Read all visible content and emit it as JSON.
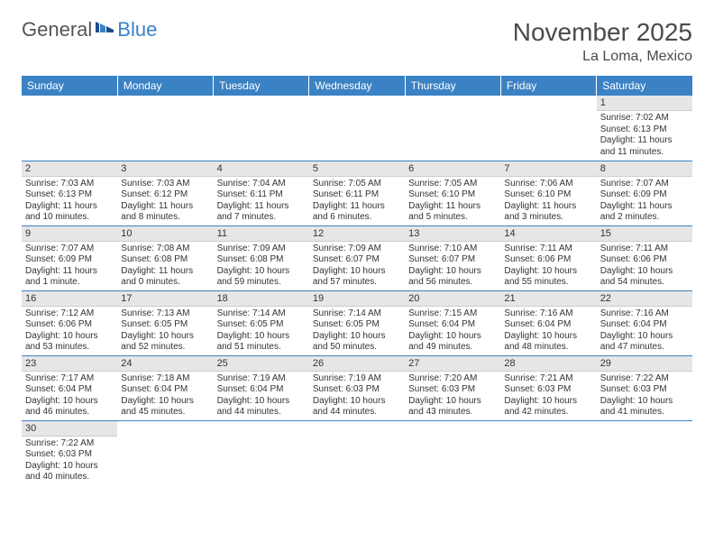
{
  "logo": {
    "general": "General",
    "blue": "Blue"
  },
  "title": "November 2025",
  "location": "La Loma, Mexico",
  "colors": {
    "header_bg": "#3b82c4",
    "header_text": "#ffffff",
    "daynum_bg": "#e6e6e6",
    "border": "#3b82c4",
    "text": "#333333"
  },
  "weekdays": [
    "Sunday",
    "Monday",
    "Tuesday",
    "Wednesday",
    "Thursday",
    "Friday",
    "Saturday"
  ],
  "grid": [
    [
      null,
      null,
      null,
      null,
      null,
      null,
      {
        "n": "1",
        "sr": "7:02 AM",
        "ss": "6:13 PM",
        "dl": "11 hours and 11 minutes."
      }
    ],
    [
      {
        "n": "2",
        "sr": "7:03 AM",
        "ss": "6:13 PM",
        "dl": "11 hours and 10 minutes."
      },
      {
        "n": "3",
        "sr": "7:03 AM",
        "ss": "6:12 PM",
        "dl": "11 hours and 8 minutes."
      },
      {
        "n": "4",
        "sr": "7:04 AM",
        "ss": "6:11 PM",
        "dl": "11 hours and 7 minutes."
      },
      {
        "n": "5",
        "sr": "7:05 AM",
        "ss": "6:11 PM",
        "dl": "11 hours and 6 minutes."
      },
      {
        "n": "6",
        "sr": "7:05 AM",
        "ss": "6:10 PM",
        "dl": "11 hours and 5 minutes."
      },
      {
        "n": "7",
        "sr": "7:06 AM",
        "ss": "6:10 PM",
        "dl": "11 hours and 3 minutes."
      },
      {
        "n": "8",
        "sr": "7:07 AM",
        "ss": "6:09 PM",
        "dl": "11 hours and 2 minutes."
      }
    ],
    [
      {
        "n": "9",
        "sr": "7:07 AM",
        "ss": "6:09 PM",
        "dl": "11 hours and 1 minute."
      },
      {
        "n": "10",
        "sr": "7:08 AM",
        "ss": "6:08 PM",
        "dl": "11 hours and 0 minutes."
      },
      {
        "n": "11",
        "sr": "7:09 AM",
        "ss": "6:08 PM",
        "dl": "10 hours and 59 minutes."
      },
      {
        "n": "12",
        "sr": "7:09 AM",
        "ss": "6:07 PM",
        "dl": "10 hours and 57 minutes."
      },
      {
        "n": "13",
        "sr": "7:10 AM",
        "ss": "6:07 PM",
        "dl": "10 hours and 56 minutes."
      },
      {
        "n": "14",
        "sr": "7:11 AM",
        "ss": "6:06 PM",
        "dl": "10 hours and 55 minutes."
      },
      {
        "n": "15",
        "sr": "7:11 AM",
        "ss": "6:06 PM",
        "dl": "10 hours and 54 minutes."
      }
    ],
    [
      {
        "n": "16",
        "sr": "7:12 AM",
        "ss": "6:06 PM",
        "dl": "10 hours and 53 minutes."
      },
      {
        "n": "17",
        "sr": "7:13 AM",
        "ss": "6:05 PM",
        "dl": "10 hours and 52 minutes."
      },
      {
        "n": "18",
        "sr": "7:14 AM",
        "ss": "6:05 PM",
        "dl": "10 hours and 51 minutes."
      },
      {
        "n": "19",
        "sr": "7:14 AM",
        "ss": "6:05 PM",
        "dl": "10 hours and 50 minutes."
      },
      {
        "n": "20",
        "sr": "7:15 AM",
        "ss": "6:04 PM",
        "dl": "10 hours and 49 minutes."
      },
      {
        "n": "21",
        "sr": "7:16 AM",
        "ss": "6:04 PM",
        "dl": "10 hours and 48 minutes."
      },
      {
        "n": "22",
        "sr": "7:16 AM",
        "ss": "6:04 PM",
        "dl": "10 hours and 47 minutes."
      }
    ],
    [
      {
        "n": "23",
        "sr": "7:17 AM",
        "ss": "6:04 PM",
        "dl": "10 hours and 46 minutes."
      },
      {
        "n": "24",
        "sr": "7:18 AM",
        "ss": "6:04 PM",
        "dl": "10 hours and 45 minutes."
      },
      {
        "n": "25",
        "sr": "7:19 AM",
        "ss": "6:04 PM",
        "dl": "10 hours and 44 minutes."
      },
      {
        "n": "26",
        "sr": "7:19 AM",
        "ss": "6:03 PM",
        "dl": "10 hours and 44 minutes."
      },
      {
        "n": "27",
        "sr": "7:20 AM",
        "ss": "6:03 PM",
        "dl": "10 hours and 43 minutes."
      },
      {
        "n": "28",
        "sr": "7:21 AM",
        "ss": "6:03 PM",
        "dl": "10 hours and 42 minutes."
      },
      {
        "n": "29",
        "sr": "7:22 AM",
        "ss": "6:03 PM",
        "dl": "10 hours and 41 minutes."
      }
    ],
    [
      {
        "n": "30",
        "sr": "7:22 AM",
        "ss": "6:03 PM",
        "dl": "10 hours and 40 minutes."
      },
      null,
      null,
      null,
      null,
      null,
      null
    ]
  ],
  "labels": {
    "sunrise": "Sunrise:",
    "sunset": "Sunset:",
    "daylight": "Daylight:"
  }
}
